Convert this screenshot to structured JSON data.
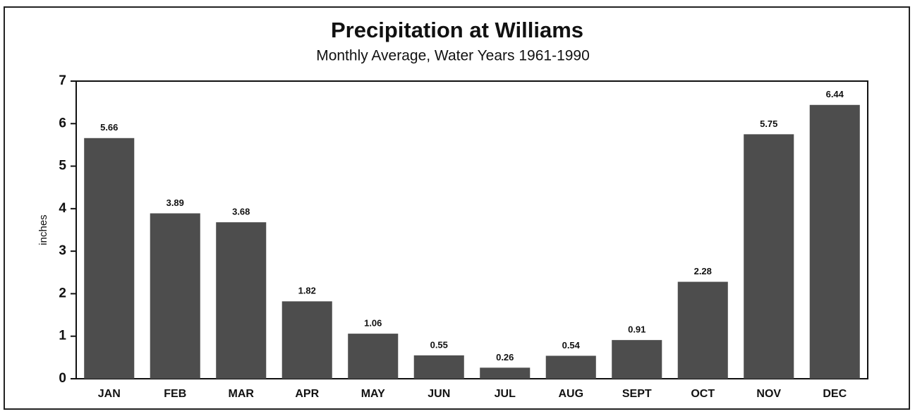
{
  "chart_data": {
    "type": "bar",
    "title": "Precipitation at Williams",
    "subtitle": "Monthly Average, Water Years 1961-1990",
    "y_label": "inches",
    "categories": [
      "JAN",
      "FEB",
      "MAR",
      "APR",
      "MAY",
      "JUN",
      "JUL",
      "AUG",
      "SEPT",
      "OCT",
      "NOV",
      "DEC"
    ],
    "values": [
      5.66,
      3.89,
      3.68,
      1.82,
      1.06,
      0.55,
      0.26,
      0.54,
      0.91,
      2.28,
      5.75,
      6.44
    ],
    "color": "#4d4d4d",
    "ylim": [
      0,
      7
    ],
    "yticks": [
      0,
      1,
      2,
      3,
      4,
      5,
      6,
      7
    ],
    "grid": false
  }
}
